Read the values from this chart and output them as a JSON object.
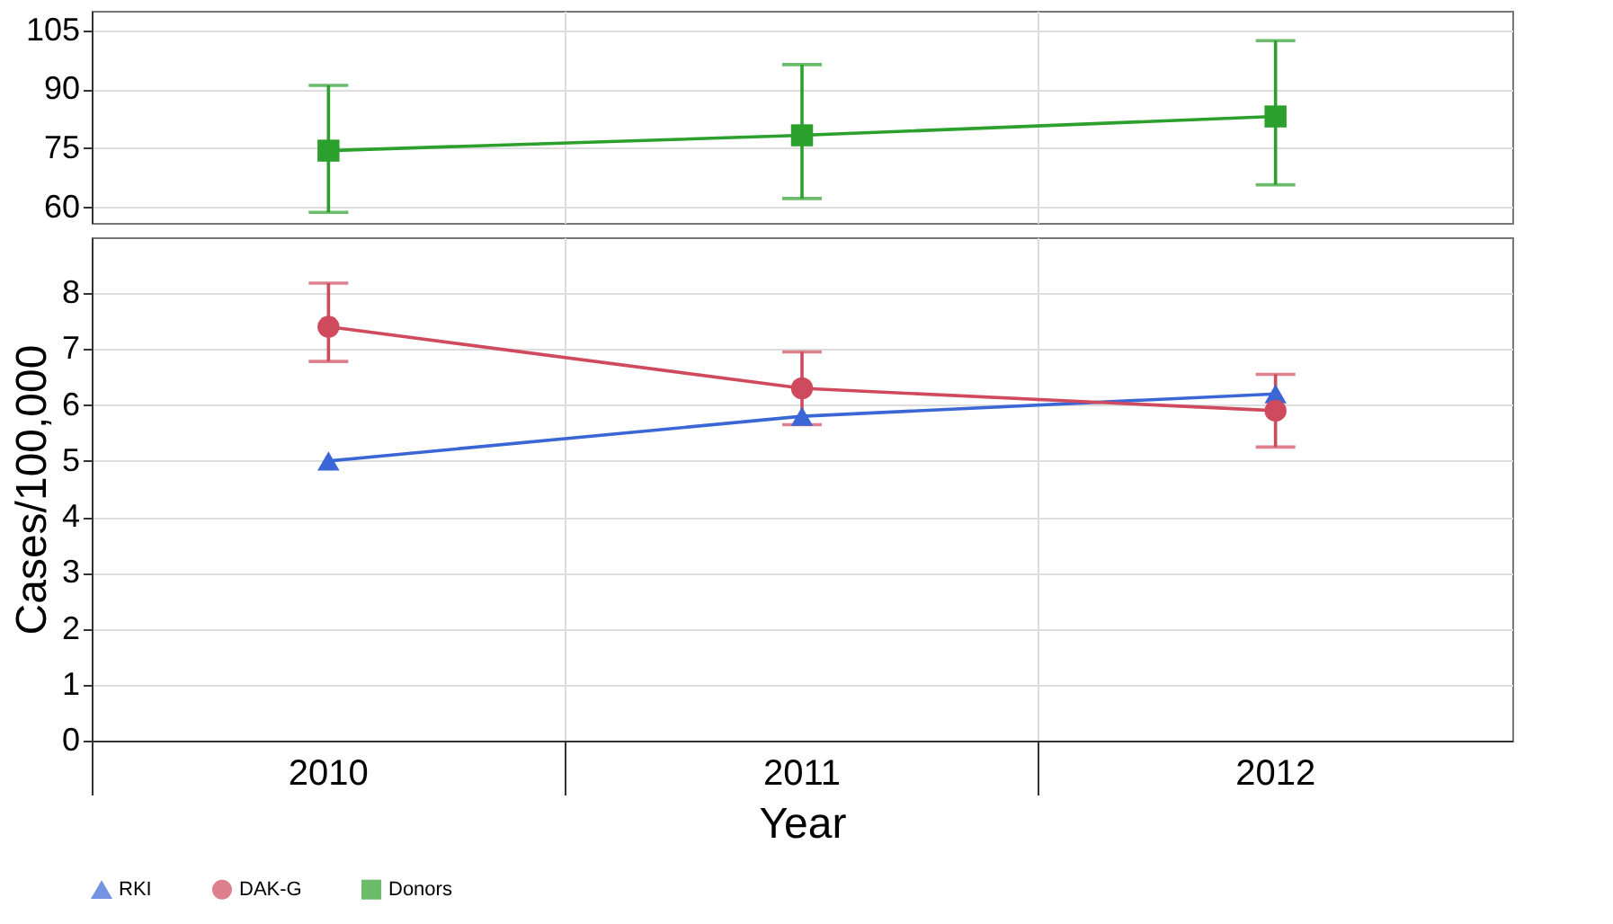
{
  "chart_data": [
    {
      "type": "line",
      "categories": [
        "2010",
        "2011",
        "2012"
      ],
      "ylim": [
        56,
        110
      ],
      "yticks": [
        60,
        75,
        90,
        105
      ],
      "grid": true,
      "tick_labels": "y",
      "series": [
        {
          "name": "Donors",
          "color": "#2ca02c",
          "marker": "square",
          "values": [
            74.4,
            78.3,
            83.1
          ],
          "errors": [
            [
              58.7,
              91.0
            ],
            [
              62.2,
              96.3
            ],
            [
              65.7,
              102.4
            ]
          ]
        }
      ]
    },
    {
      "type": "line",
      "categories": [
        "2010",
        "2011",
        "2012"
      ],
      "xlabel": "Year",
      "ylabel": "Cases/100,000",
      "ylim": [
        0,
        9
      ],
      "yticks": [
        0,
        1,
        2,
        3,
        4,
        5,
        6,
        7,
        8
      ],
      "grid": true,
      "legend": "bottom",
      "series": [
        {
          "name": "RKI",
          "color": "#3a66d6",
          "marker": "triangle",
          "values": [
            5.0,
            5.8,
            6.2
          ]
        },
        {
          "name": "DAK-G",
          "color": "#d04a5e",
          "marker": "circle",
          "values": [
            7.4,
            6.3,
            5.9
          ],
          "errors": [
            [
              6.78,
              8.18
            ],
            [
              5.65,
              6.95
            ],
            [
              5.25,
              6.55
            ]
          ]
        }
      ]
    }
  ]
}
